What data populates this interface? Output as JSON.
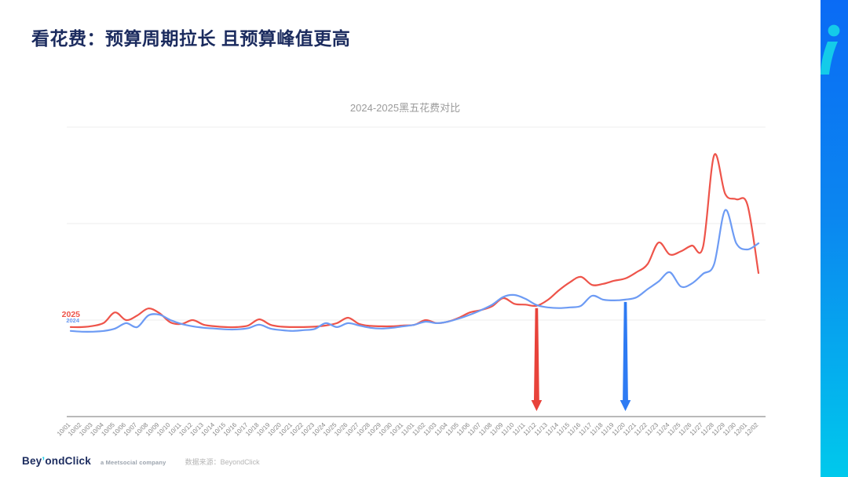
{
  "slide": {
    "title": "看花费：预算周期拉长 且预算峰值更高"
  },
  "chart_data": {
    "type": "line",
    "title": "2024-2025黑五花费对比",
    "xlabel": "",
    "ylabel": "",
    "ylim": [
      0,
      80
    ],
    "gridlines": [
      25,
      50,
      75
    ],
    "grid": "horizontal-only",
    "legend_position": "inline-left-of-lines",
    "x": [
      "10/01",
      "10/02",
      "10/03",
      "10/04",
      "10/05",
      "10/06",
      "10/07",
      "10/08",
      "10/09",
      "10/10",
      "10/11",
      "10/12",
      "10/13",
      "10/14",
      "10/15",
      "10/16",
      "10/17",
      "10/18",
      "10/19",
      "10/20",
      "10/21",
      "10/22",
      "10/23",
      "10/24",
      "10/25",
      "10/26",
      "10/27",
      "10/28",
      "10/29",
      "10/30",
      "10/31",
      "11/01",
      "11/02",
      "11/03",
      "11/04",
      "11/05",
      "11/06",
      "11/07",
      "11/08",
      "11/09",
      "11/10",
      "11/11",
      "11/12",
      "11/13",
      "11/14",
      "11/15",
      "11/16",
      "11/17",
      "11/18",
      "11/19",
      "11/20",
      "11/21",
      "11/22",
      "11/23",
      "11/24",
      "11/25",
      "11/26",
      "11/27",
      "11/28",
      "11/29",
      "11/30",
      "12/01",
      "12/02"
    ],
    "series": [
      {
        "name": "2025",
        "color": "#ee544a",
        "values": [
          23.2,
          23.2,
          23.5,
          24.3,
          27.0,
          25.0,
          26.2,
          28.0,
          26.8,
          24.4,
          24.0,
          25.0,
          23.8,
          23.4,
          23.2,
          23.2,
          23.6,
          25.2,
          23.8,
          23.3,
          23.2,
          23.2,
          23.3,
          23.6,
          24.2,
          25.6,
          24.0,
          23.5,
          23.4,
          23.4,
          23.6,
          23.8,
          25.0,
          24.2,
          24.6,
          25.6,
          27.0,
          27.6,
          28.6,
          30.7,
          29.2,
          29.0,
          28.7,
          30.2,
          32.7,
          34.8,
          36.2,
          34.1,
          34.4,
          35.2,
          35.8,
          37.4,
          39.5,
          45.1,
          42.0,
          42.8,
          44.3,
          44.0,
          67.7,
          57.7,
          56.3,
          54.9,
          37.2
        ]
      },
      {
        "name": "2024",
        "color": "#6d9bf4",
        "values": [
          22.2,
          22.0,
          22.0,
          22.2,
          22.8,
          24.2,
          23.2,
          26.2,
          26.4,
          25.0,
          24.0,
          23.4,
          23.0,
          22.8,
          22.6,
          22.6,
          22.9,
          23.8,
          22.8,
          22.4,
          22.2,
          22.4,
          22.7,
          24.2,
          23.2,
          24.2,
          23.6,
          23.0,
          22.8,
          23.0,
          23.4,
          23.8,
          24.6,
          24.2,
          24.6,
          25.4,
          26.4,
          27.6,
          29.0,
          31.0,
          31.5,
          30.5,
          28.9,
          28.3,
          28.1,
          28.3,
          28.7,
          31.3,
          30.3,
          30.1,
          30.3,
          30.9,
          33.0,
          35.0,
          37.4,
          33.7,
          34.5,
          37.0,
          39.5,
          53.5,
          44.9,
          43.3,
          44.9
        ]
      }
    ],
    "annotations": [
      {
        "type": "down-arrow",
        "date": "11/12",
        "series": "2025",
        "color": "#e8423a"
      },
      {
        "type": "down-arrow",
        "date": "11/20",
        "series": "2024",
        "color": "#2e7bf3"
      }
    ]
  },
  "footer": {
    "logo_pre": "Bey",
    "logo_tick": "’",
    "logo_post": "ondClick",
    "tagline": "a Meetsocial company",
    "source": "数据来源：BeyondClick"
  },
  "brand": {
    "bar_gradient_top": "#0a6bf5",
    "bar_gradient_bottom": "#00c9ec",
    "logo_mark_color": "#14cbe9"
  }
}
